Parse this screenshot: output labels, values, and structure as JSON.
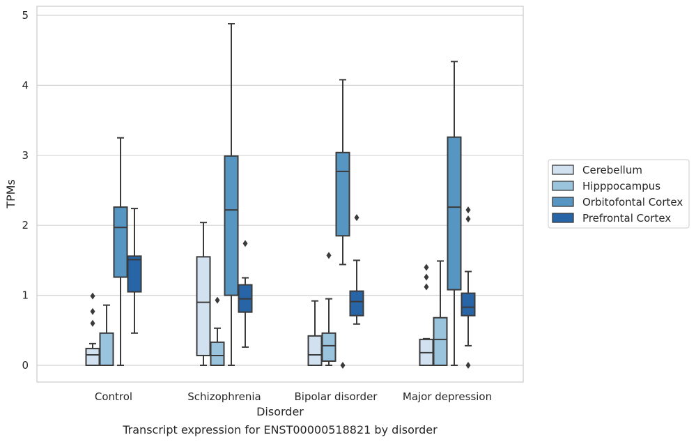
{
  "chart_data": {
    "type": "box",
    "caption": "Transcript expression for ENST00000518821 by disorder",
    "xlabel": "Disorder",
    "ylabel": "TPMs",
    "ylim": [
      -0.24,
      5.14
    ],
    "yticks": [
      0,
      1,
      2,
      3,
      4,
      5
    ],
    "grid": "horizontal",
    "legend_position": "right",
    "categories": [
      "Control",
      "Schizophrenia",
      "Bipolar disorder",
      "Major depression"
    ],
    "series": [
      {
        "name": "Cerebellum",
        "color": "#d1e1f0",
        "boxes": [
          {
            "whisker_low": 0.0,
            "q1": 0.0,
            "median": 0.15,
            "q3": 0.24,
            "whisker_high": 0.31,
            "outliers": [
              0.6,
              0.77,
              0.99
            ]
          },
          {
            "whisker_low": 0.0,
            "q1": 0.14,
            "median": 0.9,
            "q3": 1.55,
            "whisker_high": 2.04,
            "outliers": []
          },
          {
            "whisker_low": 0.0,
            "q1": 0.0,
            "median": 0.15,
            "q3": 0.42,
            "whisker_high": 0.92,
            "outliers": []
          },
          {
            "whisker_low": 0.0,
            "q1": 0.0,
            "median": 0.18,
            "q3": 0.37,
            "whisker_high": 0.38,
            "outliers": [
              1.12,
              1.26,
              1.4
            ]
          }
        ]
      },
      {
        "name": "Hipppocampus",
        "color": "#9ac3dd",
        "boxes": [
          {
            "whisker_low": 0.0,
            "q1": 0.0,
            "median": 0.0,
            "q3": 0.46,
            "whisker_high": 0.86,
            "outliers": []
          },
          {
            "whisker_low": 0.0,
            "q1": 0.0,
            "median": 0.14,
            "q3": 0.33,
            "whisker_high": 0.53,
            "outliers": [
              0.93
            ]
          },
          {
            "whisker_low": 0.0,
            "q1": 0.06,
            "median": 0.28,
            "q3": 0.46,
            "whisker_high": 0.95,
            "outliers": [
              1.57
            ]
          },
          {
            "whisker_low": 0.0,
            "q1": 0.0,
            "median": 0.37,
            "q3": 0.68,
            "whisker_high": 1.49,
            "outliers": []
          }
        ]
      },
      {
        "name": "Orbitofontal Cortex",
        "color": "#5795c3",
        "boxes": [
          {
            "whisker_low": 0.0,
            "q1": 1.26,
            "median": 1.97,
            "q3": 2.26,
            "whisker_high": 3.25,
            "outliers": []
          },
          {
            "whisker_low": 0.0,
            "q1": 1.0,
            "median": 2.22,
            "q3": 2.99,
            "whisker_high": 4.88,
            "outliers": []
          },
          {
            "whisker_low": 1.44,
            "q1": 1.85,
            "median": 2.77,
            "q3": 3.04,
            "whisker_high": 4.08,
            "outliers": [
              0.0
            ]
          },
          {
            "whisker_low": 0.0,
            "q1": 1.08,
            "median": 2.26,
            "q3": 3.26,
            "whisker_high": 4.34,
            "outliers": []
          }
        ]
      },
      {
        "name": "Prefrontal Cortex",
        "color": "#2865a7",
        "boxes": [
          {
            "whisker_low": 0.46,
            "q1": 1.05,
            "median": 1.51,
            "q3": 1.56,
            "whisker_high": 2.24,
            "outliers": []
          },
          {
            "whisker_low": 0.26,
            "q1": 0.76,
            "median": 0.95,
            "q3": 1.15,
            "whisker_high": 1.25,
            "outliers": [
              1.74
            ]
          },
          {
            "whisker_low": 0.59,
            "q1": 0.71,
            "median": 0.91,
            "q3": 1.06,
            "whisker_high": 1.5,
            "outliers": [
              2.11
            ]
          },
          {
            "whisker_low": 0.28,
            "q1": 0.71,
            "median": 0.83,
            "q3": 1.03,
            "whisker_high": 1.34,
            "outliers": [
              0.0,
              2.09,
              2.22
            ]
          }
        ]
      }
    ]
  }
}
